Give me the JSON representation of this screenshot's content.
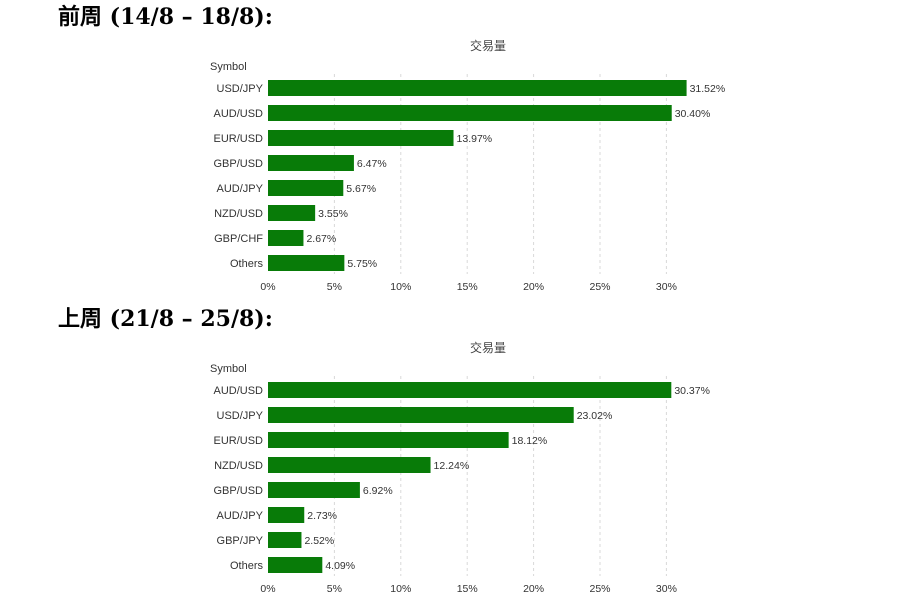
{
  "sections": [
    {
      "heading": "前周 (14/8 – 18/8):",
      "chart_data": {
        "type": "bar",
        "orientation": "horizontal",
        "title": "交易量",
        "ylabel": "Symbol",
        "xlabel": "",
        "categories": [
          "USD/JPY",
          "AUD/USD",
          "EUR/USD",
          "GBP/USD",
          "AUD/JPY",
          "NZD/USD",
          "GBP/CHF",
          "Others"
        ],
        "values": [
          31.52,
          30.4,
          13.97,
          6.47,
          5.67,
          3.55,
          2.67,
          5.75
        ],
        "value_labels": [
          "31.52%",
          "30.40%",
          "13.97%",
          "6.47%",
          "5.67%",
          "3.55%",
          "2.67%",
          "5.75%"
        ],
        "xlim": [
          0,
          30
        ],
        "xticks": [
          0,
          5,
          10,
          15,
          20,
          25,
          30
        ],
        "xtick_labels": [
          "0%",
          "5%",
          "10%",
          "15%",
          "20%",
          "25%",
          "30%"
        ],
        "grid": "vertical dashed",
        "bar_color": "#087b08"
      }
    },
    {
      "heading": "上周 (21/8 – 25/8):",
      "chart_data": {
        "type": "bar",
        "orientation": "horizontal",
        "title": "交易量",
        "ylabel": "Symbol",
        "xlabel": "",
        "categories": [
          "AUD/USD",
          "USD/JPY",
          "EUR/USD",
          "NZD/USD",
          "GBP/USD",
          "AUD/JPY",
          "GBP/JPY",
          "Others"
        ],
        "values": [
          30.37,
          23.02,
          18.12,
          12.24,
          6.92,
          2.73,
          2.52,
          4.09
        ],
        "value_labels": [
          "30.37%",
          "23.02%",
          "18.12%",
          "12.24%",
          "6.92%",
          "2.73%",
          "2.52%",
          "4.09%"
        ],
        "xlim": [
          0,
          30
        ],
        "xticks": [
          0,
          5,
          10,
          15,
          20,
          25,
          30
        ],
        "xtick_labels": [
          "0%",
          "5%",
          "10%",
          "15%",
          "20%",
          "25%",
          "30%"
        ],
        "grid": "vertical dashed",
        "bar_color": "#087b08"
      }
    }
  ]
}
